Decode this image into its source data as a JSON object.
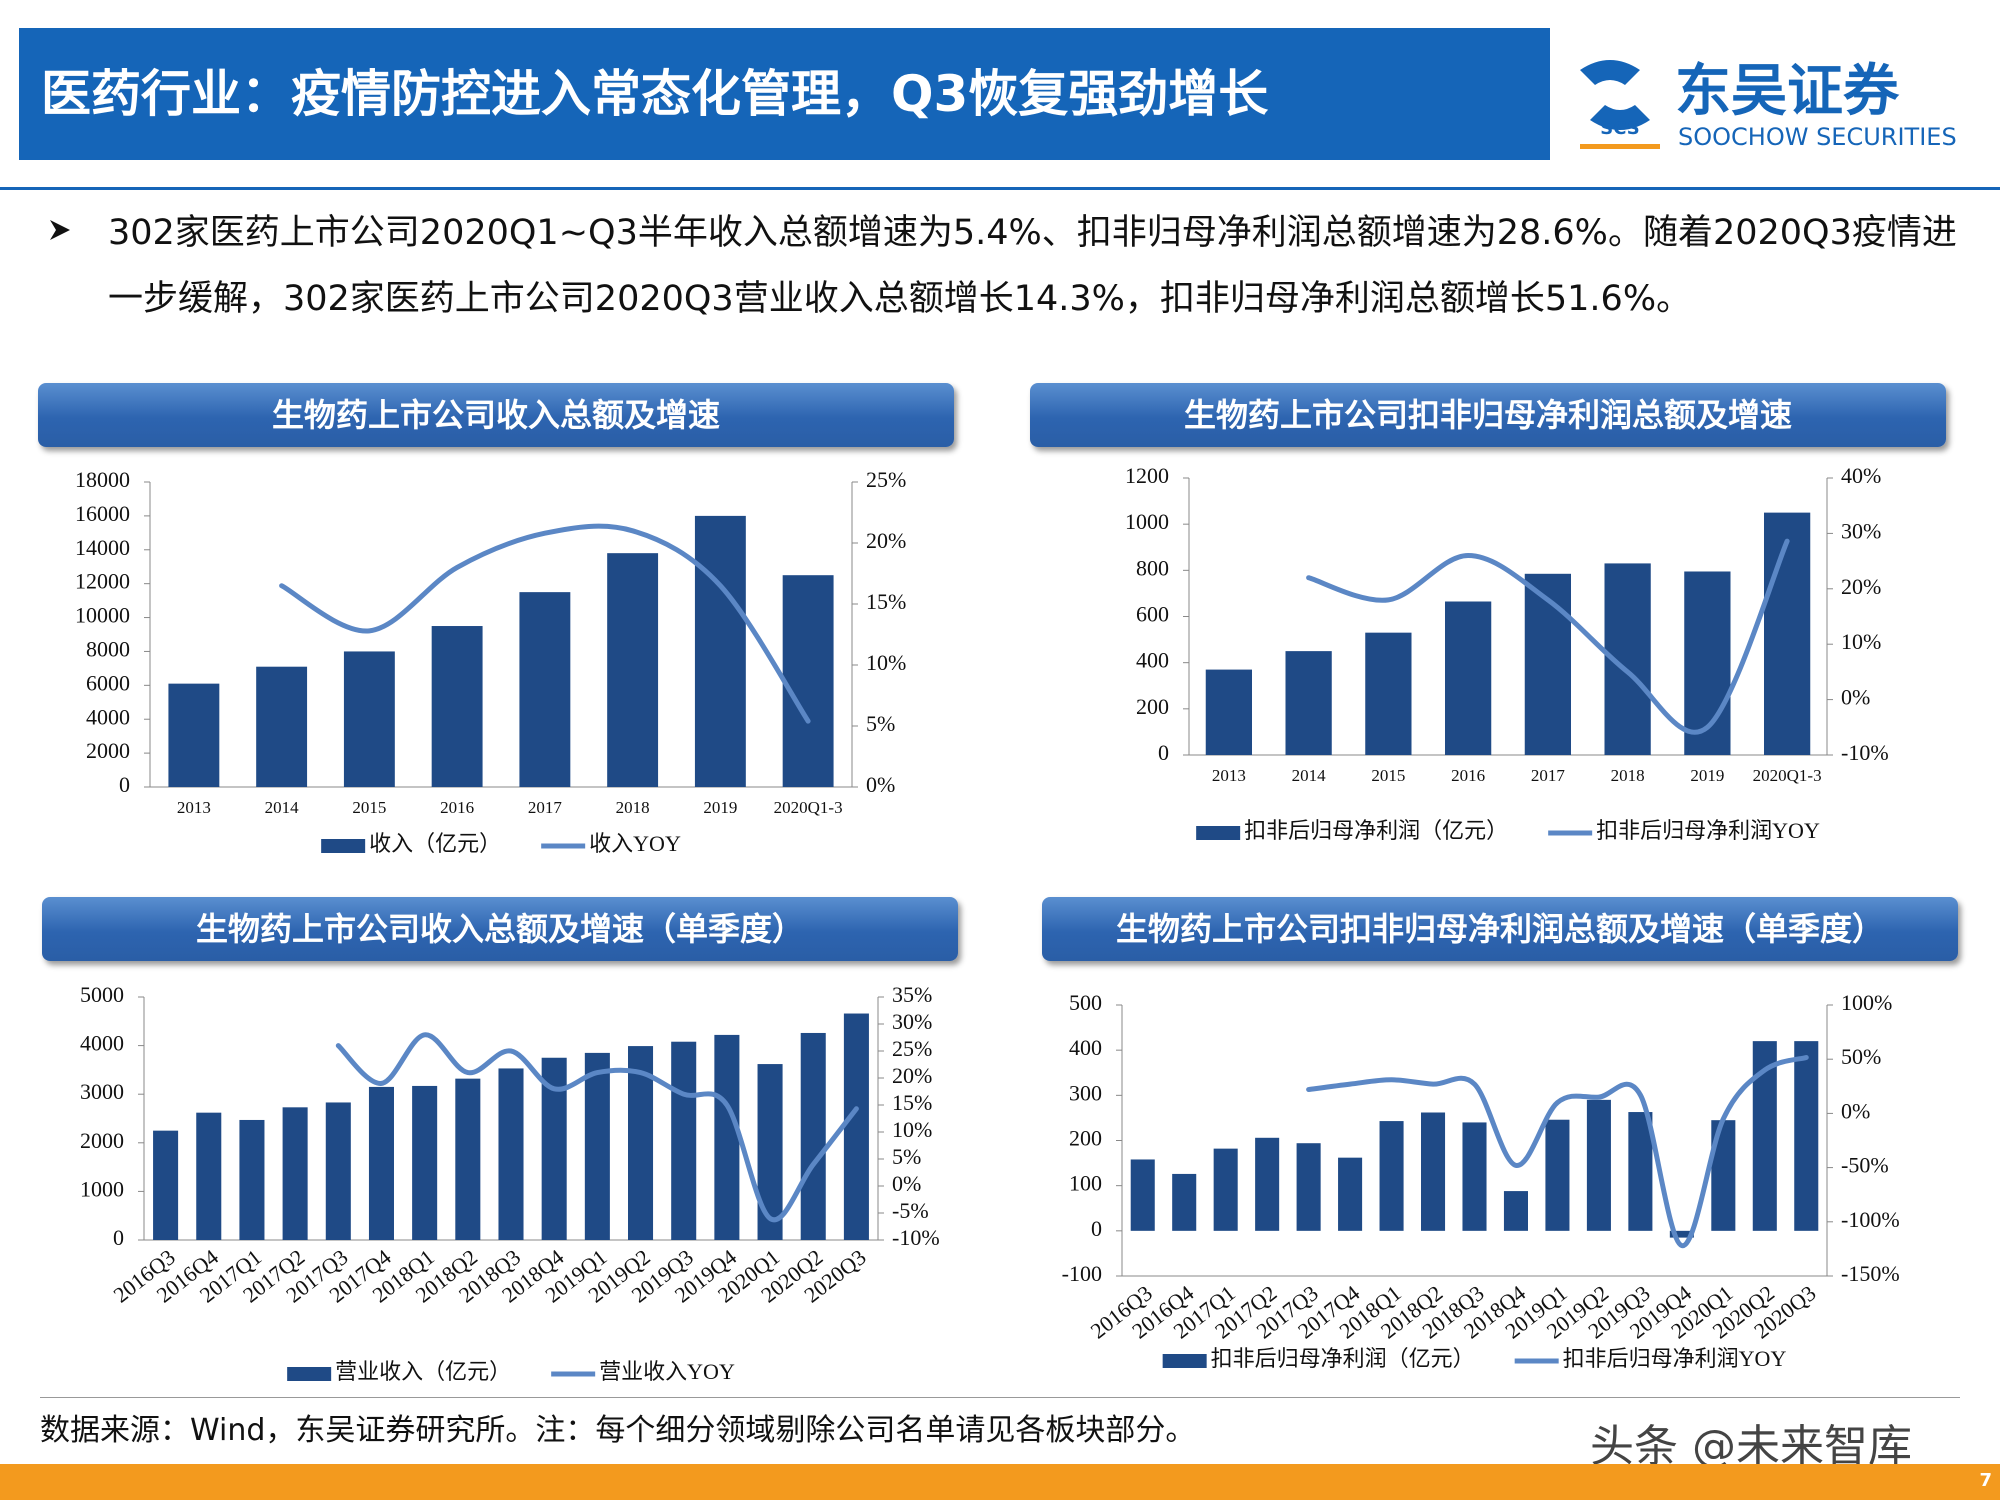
{
  "header": {
    "title": "医药行业：疫情防控进入常态化管理，Q3恢复强劲增长"
  },
  "logo": {
    "mark": "SCS",
    "name": "东吴证券",
    "name_en": "SOOCHOW SECURITIES"
  },
  "bullet": "302家医药上市公司2020Q1~Q3半年收入总额增速为5.4%、扣非归母净利润总额增速为28.6%。随着2020Q3疫情进一步缓解，302家医药上市公司2020Q3营业收入总额增长14.3%，扣非归母净利润总额增长51.6%。",
  "source": "数据来源：Wind，东吴证券研究所。注：每个细分领域剔除公司名单请见各板块部分。",
  "watermark": "头条 @未来智库",
  "page_number": "7",
  "chart_data": [
    {
      "type": "bar",
      "title": "生物药上市公司收入总额及增速",
      "categories": [
        "2013",
        "2014",
        "2015",
        "2016",
        "2017",
        "2018",
        "2019",
        "2020Q1-3"
      ],
      "series": [
        {
          "name": "收入（亿元）",
          "type": "bar",
          "color": "#1f4a86",
          "values": [
            6100,
            7100,
            8000,
            9500,
            11500,
            13800,
            16000,
            12500
          ]
        },
        {
          "name": "收入YOY",
          "type": "line",
          "axis": "y2",
          "color": "#5b87c5",
          "values": [
            null,
            16.5,
            12.8,
            18,
            20.8,
            21,
            16.5,
            5.4
          ]
        }
      ],
      "ylim": [
        0,
        18000
      ],
      "yticks": [
        0,
        2000,
        4000,
        6000,
        8000,
        10000,
        12000,
        14000,
        16000,
        18000
      ],
      "y2lim": [
        0,
        25
      ],
      "y2ticks": [
        {
          "value": 0,
          "label": "0%"
        },
        {
          "value": 5,
          "label": "5%"
        },
        {
          "value": 10,
          "label": "10%"
        },
        {
          "value": 15,
          "label": "15%"
        },
        {
          "value": 20,
          "label": "20%"
        },
        {
          "value": 25,
          "label": "25%"
        }
      ],
      "legend": "bottom"
    },
    {
      "type": "bar",
      "title": "生物药上市公司扣非归母净利润总额及增速",
      "categories": [
        "2013",
        "2014",
        "2015",
        "2016",
        "2017",
        "2018",
        "2019",
        "2020Q1-3"
      ],
      "series": [
        {
          "name": "扣非后归母净利润（亿元）",
          "type": "bar",
          "color": "#1f4a86",
          "values": [
            370,
            450,
            530,
            665,
            785,
            830,
            795,
            1050
          ]
        },
        {
          "name": "扣非后归母净利润YOY",
          "type": "line",
          "axis": "y2",
          "color": "#5b87c5",
          "values": [
            null,
            22,
            18,
            26,
            18,
            5,
            -5,
            28.6
          ]
        }
      ],
      "ylim": [
        0,
        1200
      ],
      "yticks": [
        0,
        200,
        400,
        600,
        800,
        1000,
        1200
      ],
      "y2lim": [
        -10,
        40
      ],
      "y2ticks": [
        {
          "value": -10,
          "label": "-10%"
        },
        {
          "value": 0,
          "label": "0%"
        },
        {
          "value": 10,
          "label": "10%"
        },
        {
          "value": 20,
          "label": "20%"
        },
        {
          "value": 30,
          "label": "30%"
        },
        {
          "value": 40,
          "label": "40%"
        }
      ],
      "legend": "bottom"
    },
    {
      "type": "bar",
      "title": "生物药上市公司收入总额及增速（单季度）",
      "categories": [
        "2016Q3",
        "2016Q4",
        "2017Q1",
        "2017Q2",
        "2017Q3",
        "2017Q4",
        "2018Q1",
        "2018Q2",
        "2018Q3",
        "2018Q4",
        "2019Q1",
        "2019Q2",
        "2019Q3",
        "2019Q4",
        "2020Q1",
        "2020Q2",
        "2020Q3"
      ],
      "series": [
        {
          "name": "营业收入（亿元）",
          "type": "bar",
          "color": "#1f4a86",
          "values": [
            2250,
            2620,
            2470,
            2730,
            2830,
            3150,
            3170,
            3320,
            3530,
            3750,
            3850,
            3990,
            4080,
            4220,
            3620,
            4260,
            4660
          ]
        },
        {
          "name": "营业收入YOY",
          "type": "line",
          "axis": "y2",
          "color": "#5b87c5",
          "values": [
            null,
            null,
            null,
            null,
            26,
            19,
            28,
            21,
            25,
            18,
            21,
            21,
            17,
            15,
            -6,
            4,
            14.3
          ]
        }
      ],
      "ylim": [
        0,
        5000
      ],
      "yticks": [
        0,
        1000,
        2000,
        3000,
        4000,
        5000
      ],
      "y2lim": [
        -10,
        35
      ],
      "y2ticks": [
        {
          "value": -10,
          "label": "-10%"
        },
        {
          "value": -5,
          "label": "-5%"
        },
        {
          "value": 0,
          "label": "0%"
        },
        {
          "value": 5,
          "label": "5%"
        },
        {
          "value": 10,
          "label": "10%"
        },
        {
          "value": 15,
          "label": "15%"
        },
        {
          "value": 20,
          "label": "20%"
        },
        {
          "value": 25,
          "label": "25%"
        },
        {
          "value": 30,
          "label": "30%"
        },
        {
          "value": 35,
          "label": "35%"
        }
      ],
      "legend": "bottom"
    },
    {
      "type": "bar",
      "title": "生物药上市公司扣非归母净利润总额及增速（单季度）",
      "categories": [
        "2016Q3",
        "2016Q4",
        "2017Q1",
        "2017Q2",
        "2017Q3",
        "2017Q4",
        "2018Q1",
        "2018Q2",
        "2018Q3",
        "2018Q4",
        "2019Q1",
        "2019Q2",
        "2019Q3",
        "2019Q4",
        "2020Q1",
        "2020Q2",
        "2020Q3"
      ],
      "series": [
        {
          "name": "扣非后归母净利润（亿元）",
          "type": "bar",
          "color": "#1f4a86",
          "values": [
            158,
            126,
            182,
            206,
            194,
            162,
            243,
            262,
            240,
            88,
            246,
            290,
            263,
            -15,
            245,
            420,
            420
          ]
        },
        {
          "name": "扣非后归母净利润YOY",
          "type": "line",
          "axis": "y2",
          "color": "#5b87c5",
          "values": [
            null,
            null,
            null,
            null,
            22,
            27,
            31,
            27,
            27,
            -48,
            10,
            15,
            17,
            -122,
            -5,
            40,
            51.6
          ]
        }
      ],
      "ylim": [
        -100,
        500
      ],
      "yticks": [
        -100,
        0,
        100,
        200,
        300,
        400,
        500
      ],
      "y2lim": [
        -150,
        100
      ],
      "y2ticks": [
        {
          "value": -150,
          "label": "-150%"
        },
        {
          "value": -100,
          "label": "-100%"
        },
        {
          "value": -50,
          "label": "-50%"
        },
        {
          "value": 0,
          "label": "0%"
        },
        {
          "value": 50,
          "label": "50%"
        },
        {
          "value": 100,
          "label": "100%"
        }
      ],
      "legend": "bottom"
    }
  ]
}
